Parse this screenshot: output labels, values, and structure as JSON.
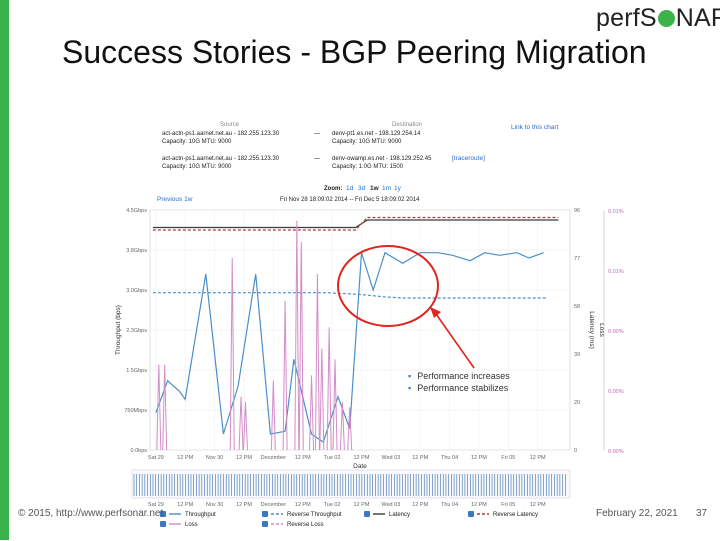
{
  "slide": {
    "title": "Success Stories - BGP Peering Migration",
    "logo_text_left": "perfS",
    "logo_text_right": "NAR",
    "footer_left": "© 2015, http://www.perfsonar.net",
    "footer_date": "February 22, 2021",
    "page_number": "37",
    "bullets": [
      "Performance increases",
      "Performance stabilizes"
    ],
    "colors": {
      "accent_green": "#3cb34a",
      "annotation_red": "#e0241e"
    }
  },
  "chart_header": {
    "source_label": "Source",
    "destination_label": "Destination",
    "link_label": "Link to this chart",
    "rows": [
      {
        "src": "act-actn-ps1.aarnet.net.au - 182.255.123.30",
        "src_cap": "Capacity: 10G   MTU: 9000",
        "dest": "denv-pt1.es.net - 198.129.254.14",
        "dest_cap": "Capacity: 10G   MTU: 9000",
        "extra": ""
      },
      {
        "src": "act-actn-ps1.aarnet.net.au - 182.255.123.30",
        "src_cap": "Capacity: 10G   MTU: 9000",
        "dest": "denv-owamp.es.net - 198.129.252.45",
        "dest_cap": "Capacity: 1.0G   MTU: 1500",
        "extra": "[traceroute]"
      }
    ],
    "dash": "—",
    "zoom_label": "Zoom:",
    "zoom_options": [
      "1d",
      "3d",
      "1w",
      "1m",
      "1y"
    ],
    "zoom_selected": "1w",
    "previous": "Previous 1w",
    "date_range": "Fri Nov 28 18:09:02 2014 -- Fri Dec 5 18:09:02 2014"
  },
  "chart_data": {
    "type": "line",
    "xlabel": "Date",
    "ylabel_left": "Throughput (bps)",
    "ylabel_right1": "Latency (ms)",
    "ylabel_right2": "Loss",
    "x_ticks": [
      "Sat 29",
      "12 PM",
      "Nov 30",
      "12 PM",
      "December",
      "12 PM",
      "Tue 02",
      "12 PM",
      "Wed 03",
      "12 PM",
      "Thu 04",
      "12 PM",
      "Fri 05",
      "12 PM"
    ],
    "xlim": [
      0,
      14.3
    ],
    "y_left_ticks": [
      "0.0bps",
      "750Mbps",
      "1.5Gbps",
      "2.3Gbps",
      "3.0Gbps",
      "3.8Gbps",
      "4.5Gbps"
    ],
    "ylim_left_gbps": [
      0,
      4.5
    ],
    "y_latency_ticks": [
      "0",
      "20",
      "39",
      "58",
      "77",
      "96"
    ],
    "ylim_latency_ms": [
      0,
      96
    ],
    "y_loss_ticks": [
      "0.00%",
      "0.00%",
      "0.00%",
      "0.01%",
      "0.01%"
    ],
    "grid": true,
    "series": [
      {
        "name": "Throughput",
        "color": "#4a8fc9",
        "style": "solid",
        "axis": "left",
        "points": [
          [
            0.2,
            0.7
          ],
          [
            0.6,
            1.3
          ],
          [
            1.0,
            1.1
          ],
          [
            1.2,
            0.95
          ],
          [
            1.9,
            3.3
          ],
          [
            2.5,
            0.3
          ],
          [
            3.0,
            1.2
          ],
          [
            3.6,
            3.3
          ],
          [
            4.1,
            0.3
          ],
          [
            4.6,
            0.35
          ],
          [
            4.9,
            1.7
          ],
          [
            5.5,
            0.3
          ],
          [
            5.9,
            0.15
          ],
          [
            6.4,
            1.0
          ],
          [
            6.8,
            0.4
          ],
          [
            7.2,
            3.7
          ],
          [
            7.6,
            3.0
          ],
          [
            8.0,
            3.7
          ],
          [
            8.6,
            3.5
          ],
          [
            9.2,
            3.7
          ],
          [
            9.8,
            3.7
          ],
          [
            10.3,
            3.65
          ],
          [
            10.9,
            3.55
          ],
          [
            11.4,
            3.7
          ],
          [
            11.9,
            3.65
          ],
          [
            12.5,
            3.7
          ],
          [
            12.9,
            3.6
          ],
          [
            13.4,
            3.7
          ]
        ]
      },
      {
        "name": "Reverse Throughput",
        "color": "#4a8fc9",
        "style": "dashed",
        "axis": "left",
        "points": [
          [
            0.1,
            2.95
          ],
          [
            3.0,
            2.95
          ],
          [
            6.0,
            2.95
          ],
          [
            7.1,
            2.92
          ],
          [
            8.0,
            2.87
          ],
          [
            8.6,
            2.85
          ],
          [
            9.6,
            2.85
          ],
          [
            11.0,
            2.85
          ],
          [
            12.2,
            2.85
          ],
          [
            13.5,
            2.85
          ]
        ]
      },
      {
        "name": "Latency",
        "color": "#3a3a3a",
        "style": "solid",
        "axis": "latency",
        "points": [
          [
            0.1,
            89
          ],
          [
            3.0,
            89
          ],
          [
            6.0,
            89
          ],
          [
            7.0,
            89
          ],
          [
            7.4,
            92
          ],
          [
            10.0,
            92
          ],
          [
            13.9,
            92
          ]
        ]
      },
      {
        "name": "Reverse Latency",
        "color": "#a0433f",
        "style": "dashed",
        "axis": "latency",
        "points": [
          [
            0.1,
            88
          ],
          [
            3.0,
            88
          ],
          [
            6.0,
            88
          ],
          [
            7.0,
            88
          ],
          [
            7.4,
            93
          ],
          [
            10.0,
            93
          ],
          [
            13.9,
            93
          ]
        ]
      },
      {
        "name": "Loss",
        "color": "#d48cc8",
        "style": "spikes",
        "axis": "left",
        "spike_x": [
          0.3,
          0.5,
          2.8,
          3.1,
          3.25,
          4.2,
          4.6,
          5.0,
          5.15,
          5.5,
          5.7,
          5.85,
          6.1,
          6.3,
          6.55,
          6.8
        ],
        "spike_y": [
          1.6,
          1.6,
          3.6,
          1.0,
          0.9,
          1.3,
          2.8,
          4.3,
          3.9,
          1.4,
          3.3,
          1.9,
          2.3,
          1.7,
          0.9,
          0.8
        ]
      },
      {
        "name": "Reverse Loss",
        "color": "#d48cc8",
        "style": "dashed",
        "axis": "left",
        "points": []
      }
    ],
    "legend": [
      {
        "name": "Throughput",
        "color": "#4a8fc9",
        "style": "solid"
      },
      {
        "name": "Reverse Throughput",
        "color": "#4a8fc9",
        "style": "dashed"
      },
      {
        "name": "Latency",
        "color": "#3a3a3a",
        "style": "solid"
      },
      {
        "name": "Reverse Latency",
        "color": "#a0433f",
        "style": "dashed"
      },
      {
        "name": "Loss",
        "color": "#d48cc8",
        "style": "solid"
      },
      {
        "name": "Reverse Loss",
        "color": "#d48cc8",
        "style": "dashed"
      }
    ]
  }
}
